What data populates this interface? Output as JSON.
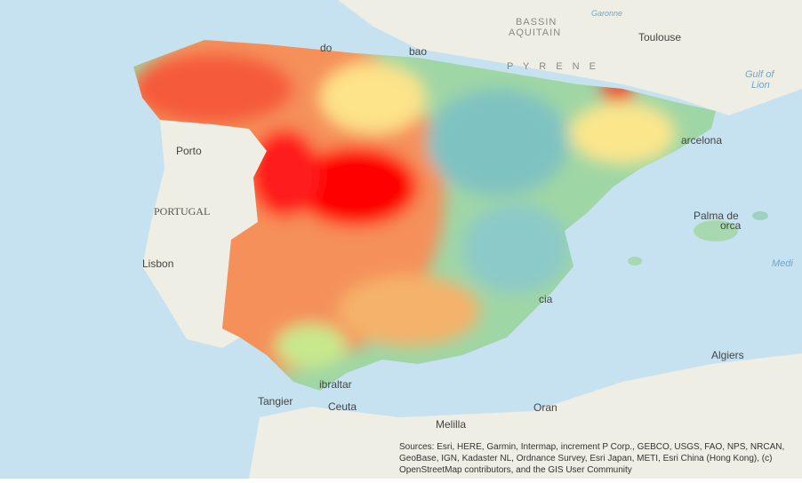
{
  "labels": {
    "bassin": "BASSIN",
    "aquitain": "AQUITAIN",
    "garonne": "Garonne",
    "toulouse": "Toulouse",
    "pyrenees": "P Y R E N E",
    "gulf": "Gulf of",
    "lion": "Lion",
    "barcelona": "arcelona",
    "oviedo": "do",
    "bilbao": "bao",
    "porto": "Porto",
    "portugal": "PORTUGAL",
    "lisbon": "Lisbon",
    "palma": "Palma de",
    "mallorca": "orca",
    "valencia": "cia",
    "medi": "Medi",
    "algiers": "Algiers",
    "tangier": "Tangier",
    "ceuta": "Ceuta",
    "gibraltar": "ibraltar",
    "melilla": "Melilla",
    "oran": "Oran"
  },
  "attribution": "Sources: Esri, HERE, Garmin, Intermap, increment P Corp., GEBCO, USGS, FAO, NPS, NRCAN, GeoBase, IGN, Kadaster NL, Ordnance Survey, Esri Japan, METI, Esri China (Hong Kong), (c) OpenStreetMap contributors, and the GIS User Community"
}
